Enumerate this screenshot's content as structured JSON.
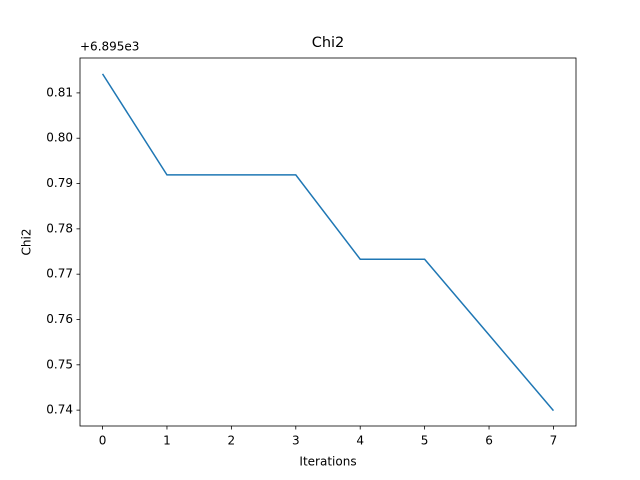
{
  "chart_data": {
    "type": "line",
    "title": "Chi2",
    "x_label": "Iterations",
    "y_label": "Chi2",
    "y_offset_label": "+6.895e3",
    "x": [
      0,
      1,
      2,
      3,
      4,
      5,
      6,
      7
    ],
    "series": [
      {
        "name": "Chi2",
        "color": "#1f77b4",
        "values": [
          0.8142,
          0.7919,
          0.7919,
          0.7919,
          0.7733,
          0.7733,
          0.7566,
          0.7399
        ]
      }
    ],
    "xlim": [
      -0.35,
      7.35
    ],
    "xticks": [
      0,
      1,
      2,
      3,
      4,
      5,
      6,
      7
    ],
    "ylim": [
      0.7365,
      0.8177
    ],
    "yticks": [
      0.74,
      0.75,
      0.76,
      0.77,
      0.78,
      0.79,
      {
        "value": 0.8,
        "label": "0.80"
      },
      0.81
    ],
    "grid": false
  }
}
